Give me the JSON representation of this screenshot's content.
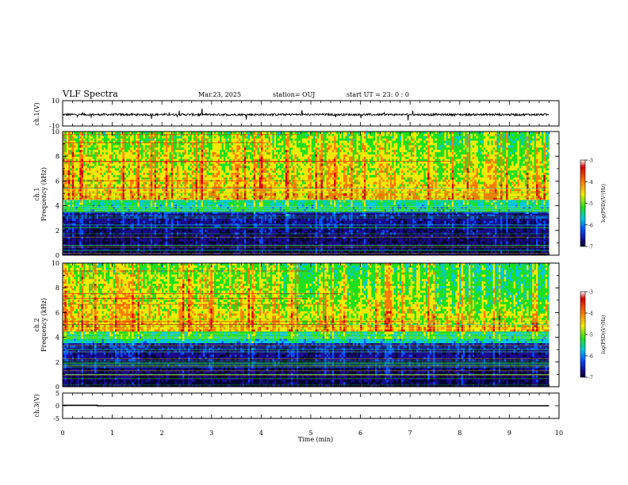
{
  "header": {
    "title": "VLF Spectra",
    "date": "Mar.23, 2025",
    "station": "station= OUJ",
    "start": "start UT =  23: 0  : 0"
  },
  "colorbar": {
    "label": "log(PSD)(V²/Hz)",
    "tick_labels": [
      "-3",
      "-4",
      "-5",
      "-6",
      "-7"
    ],
    "colors": [
      "#d40000",
      "#ff7a00",
      "#f2ea00",
      "#1ee01e",
      "#00c8e0",
      "#0050ff",
      "#1a0a8c",
      "#000030"
    ]
  },
  "chart_data": [
    {
      "type": "line",
      "name": "ch1-waveform",
      "ylabel": "ch.1(V)",
      "ylim": [
        -10,
        10
      ],
      "xlim": [
        0,
        10
      ],
      "yticks": [
        "10",
        "-10"
      ],
      "baseline": -1
    },
    {
      "type": "heatmap",
      "name": "ch1-spectrogram",
      "ylabel": "ch.1\nFrequency (kHz)",
      "ylabel_lines": [
        "ch.1",
        "Frequency (kHz)"
      ],
      "ylim": [
        0,
        10
      ],
      "xlim": [
        0,
        10
      ],
      "yticks": [
        "0",
        "2",
        "4",
        "6",
        "8",
        "10"
      ],
      "zlim": [
        -7,
        -3
      ]
    },
    {
      "type": "heatmap",
      "name": "ch2-spectrogram",
      "ylabel_lines": [
        "ch.2",
        "Frequency (kHz)"
      ],
      "ylim": [
        0,
        10
      ],
      "xlim": [
        0,
        10
      ],
      "yticks": [
        "0",
        "2",
        "4",
        "6",
        "8",
        "10"
      ],
      "zlim": [
        -7,
        -3
      ]
    },
    {
      "type": "line",
      "name": "ch3-waveform",
      "ylabel": "ch.3(V)",
      "ylim": [
        -5,
        5
      ],
      "xlim": [
        0,
        10
      ],
      "yticks": [
        "5",
        "0",
        "-5"
      ],
      "x": [
        0,
        0.7,
        0.7,
        9.8
      ],
      "y": [
        0.2,
        0.2,
        0,
        0
      ]
    }
  ],
  "xaxis": {
    "label": "Time (min)",
    "tick_labels": [
      "0",
      "1",
      "2",
      "3",
      "4",
      "5",
      "6",
      "7",
      "8",
      "9",
      "10"
    ]
  }
}
